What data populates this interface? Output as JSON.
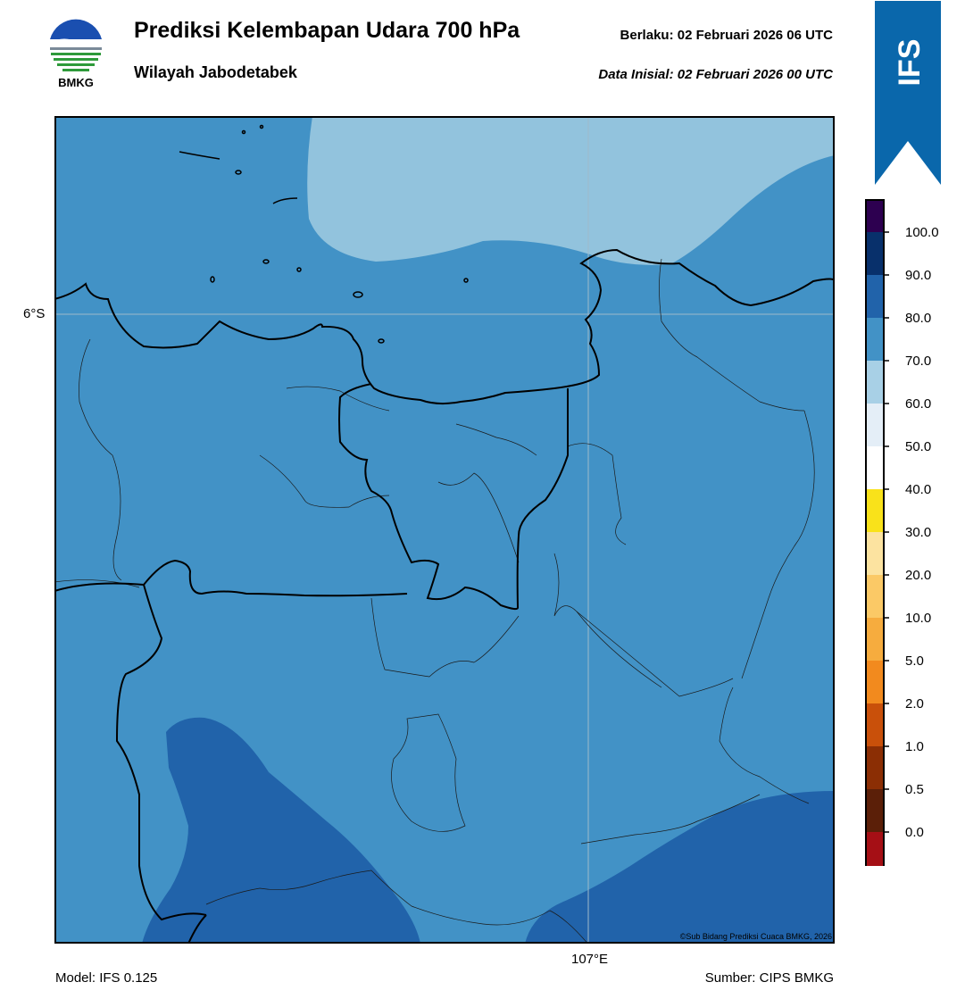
{
  "header": {
    "logo_text": "BMKG",
    "title": "Prediksi Kelembapan Udara 700 hPa",
    "subtitle": "Wilayah Jabodetabek",
    "valid": "Berlaku:  02 Februari 2026 06 UTC",
    "initial": "Data Inisial:  02 Februari 2026 00 UTC"
  },
  "badge": {
    "text": "IFS",
    "color": "#0a67ab"
  },
  "map": {
    "lat_label": "6°S",
    "lon_label": "107°E",
    "copyright": "©Sub Bidang Prediksi Cuaca BMKG, 2026",
    "fill_colors": {
      "band_70_80": "#4292c6",
      "band_60_70": "#92c3dd",
      "band_80_90": "#2163aa"
    }
  },
  "footer": {
    "model": "Model: IFS 0.125",
    "source": "Sumber: CIPS BMKG"
  },
  "colorbar": {
    "ticks": [
      "100.0",
      "90.0",
      "80.0",
      "70.0",
      "60.0",
      "50.0",
      "40.0",
      "30.0",
      "20.0",
      "10.0",
      "5.0",
      "2.0",
      "1.0",
      "0.5",
      "0.0"
    ],
    "colors": [
      "#e8392f",
      "#a50f15",
      "#5b1f08",
      "#8b2e04",
      "#c9500a",
      "#f28a1e",
      "#f6ac3e",
      "#fbc966",
      "#fce3a0",
      "#f9e21a",
      "#ffffff",
      "#e4eef7",
      "#a8d0e6",
      "#4292c6",
      "#2163aa",
      "#08306b",
      "#2d0050"
    ]
  }
}
